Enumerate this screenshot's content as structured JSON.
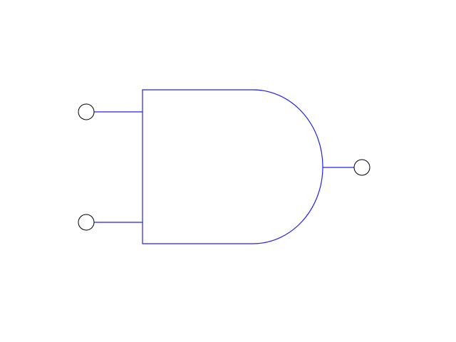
{
  "diagram": {
    "type": "logic-gate",
    "gate": "AND",
    "inputs": 2,
    "outputs": 1,
    "colors": {
      "gate_stroke": "#2222ee",
      "wire_stroke": "#2222ee",
      "terminal_stroke": "#000000",
      "terminal_fill": "#ffffff",
      "background": "#ffffff"
    },
    "icons": {
      "input_terminal": "circle",
      "output_terminal": "circle"
    }
  }
}
